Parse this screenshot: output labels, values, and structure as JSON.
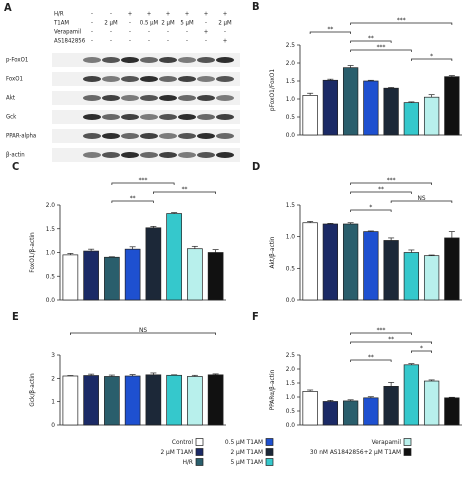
{
  "blot": {
    "panel": "A",
    "conditions": [
      {
        "label": "H/R",
        "cells": [
          "-",
          "-",
          "+",
          "+",
          "+",
          "+",
          "+",
          "+"
        ]
      },
      {
        "label": "T1AM",
        "cells": [
          "-",
          "2 μM",
          "-",
          "0.5 μM",
          "2 μM",
          "5 μM",
          "-",
          "2 μM"
        ]
      },
      {
        "label": "Verapamil",
        "cells": [
          "-",
          "-",
          "-",
          "-",
          "-",
          "-",
          "+",
          "-"
        ]
      },
      {
        "label": "AS1842856",
        "cells": [
          "-",
          "-",
          "-",
          "-",
          "-",
          "-",
          "-",
          "+"
        ]
      }
    ],
    "rows": [
      "p-FoxO1",
      "FoxO1",
      "Akt",
      "Gck",
      "PPAR-alpha",
      "β-actin"
    ]
  },
  "legend": {
    "items": [
      {
        "label": "Control",
        "color": "#ffffff"
      },
      {
        "label": "2 μM T1AM",
        "color": "#1b2a66"
      },
      {
        "label": "H/R",
        "color": "#2a5e6c"
      },
      {
        "label": "0.5 μM T1AM",
        "color": "#1e50d0"
      },
      {
        "label": "2 μM T1AM",
        "color": "#1c2838"
      },
      {
        "label": "5 μM T1AM",
        "color": "#35c8cc"
      },
      {
        "label": "Verapamil",
        "color": "#b8f0ec"
      },
      {
        "label": "30 nM AS1842856+2 μM T1AM",
        "color": "#111111"
      }
    ]
  },
  "chart_data": [
    {
      "type": "bar",
      "panel": "B",
      "y_label": "pFoxO1/FoxO1",
      "values": [
        1.1,
        1.52,
        1.87,
        1.5,
        1.3,
        0.9,
        1.05,
        1.62
      ],
      "errors": [
        0.06,
        0.03,
        0.06,
        0.02,
        0.02,
        0.02,
        0.07,
        0.03
      ],
      "ylim": [
        0,
        2.5
      ],
      "yticks": [
        {
          "value": 0,
          "label": "0.0"
        },
        0.5,
        {
          "value": 1,
          "label": "1.0"
        },
        1.5,
        {
          "value": 2,
          "label": "2.0"
        },
        2.5
      ],
      "brackets": [
        {
          "label": "***",
          "bars": [
            2,
            7
          ]
        },
        {
          "label": "**",
          "bars": [
            0,
            2
          ]
        },
        {
          "label": "**",
          "bars": [
            2,
            4
          ]
        },
        {
          "label": "***",
          "bars": [
            2,
            5
          ]
        },
        {
          "label": "*",
          "bars": [
            5,
            7
          ]
        }
      ]
    },
    {
      "type": "bar",
      "panel": "C",
      "y_label": "FoxO1/β-actin",
      "values": [
        0.95,
        1.03,
        0.9,
        1.07,
        1.52,
        1.82,
        1.08,
        1.0
      ],
      "errors": [
        0.03,
        0.04,
        0.01,
        0.05,
        0.03,
        0.02,
        0.05,
        0.06
      ],
      "ylim": [
        0,
        2
      ],
      "yticks": [
        {
          "value": 0,
          "label": "0.0"
        },
        0.5,
        {
          "value": 1,
          "label": "1.0"
        },
        1.5,
        {
          "value": 2,
          "label": "2.0"
        }
      ],
      "brackets": [
        {
          "label": "***",
          "bars": [
            2,
            5
          ]
        },
        {
          "label": "**",
          "bars": [
            4,
            7
          ]
        },
        {
          "label": "**",
          "bars": [
            2,
            4
          ]
        }
      ]
    },
    {
      "type": "bar",
      "panel": "D",
      "y_label": "Akt/β-actin",
      "values": [
        1.22,
        1.2,
        1.2,
        1.08,
        0.94,
        0.75,
        0.7,
        0.98
      ],
      "errors": [
        0.02,
        0.01,
        0.02,
        0.01,
        0.04,
        0.04,
        0.01,
        0.1
      ],
      "ylim": [
        0,
        1.5
      ],
      "yticks": [
        {
          "value": 0,
          "label": "0.0"
        },
        0.5,
        {
          "value": 1,
          "label": "1.0"
        },
        1.5
      ],
      "brackets": [
        {
          "label": "***",
          "bars": [
            2,
            6
          ]
        },
        {
          "label": "**",
          "bars": [
            2,
            5
          ]
        },
        {
          "label": "NS",
          "bars": [
            4,
            7
          ]
        },
        {
          "label": "*",
          "bars": [
            2,
            4
          ]
        }
      ]
    },
    {
      "type": "bar",
      "panel": "E",
      "y_label": "Gck/β-actin",
      "values": [
        2.1,
        2.12,
        2.08,
        2.1,
        2.15,
        2.13,
        2.08,
        2.15
      ],
      "errors": [
        0.02,
        0.06,
        0.06,
        0.06,
        0.08,
        0.02,
        0.05,
        0.04
      ],
      "ylim": [
        0,
        3
      ],
      "yticks": [
        0,
        1,
        2,
        3
      ],
      "brackets": [
        {
          "label": "NS",
          "bars": [
            0,
            7
          ]
        }
      ]
    },
    {
      "type": "bar",
      "panel": "F",
      "y_label": "PPARα/β-actin",
      "values": [
        1.2,
        0.84,
        0.86,
        0.97,
        1.38,
        2.15,
        1.57,
        0.97
      ],
      "errors": [
        0.05,
        0.04,
        0.04,
        0.04,
        0.14,
        0.04,
        0.04,
        0.02
      ],
      "ylim": [
        0,
        2.5
      ],
      "yticks": [
        {
          "value": 0,
          "label": "0.0"
        },
        0.5,
        {
          "value": 1,
          "label": "1.0"
        },
        1.5,
        {
          "value": 2,
          "label": "2.0"
        },
        2.5
      ],
      "brackets": [
        {
          "label": "***",
          "bars": [
            2,
            5
          ]
        },
        {
          "label": "**",
          "bars": [
            2,
            6
          ]
        },
        {
          "label": "*",
          "bars": [
            5,
            6
          ]
        },
        {
          "label": "**",
          "bars": [
            2,
            4
          ]
        }
      ]
    }
  ]
}
